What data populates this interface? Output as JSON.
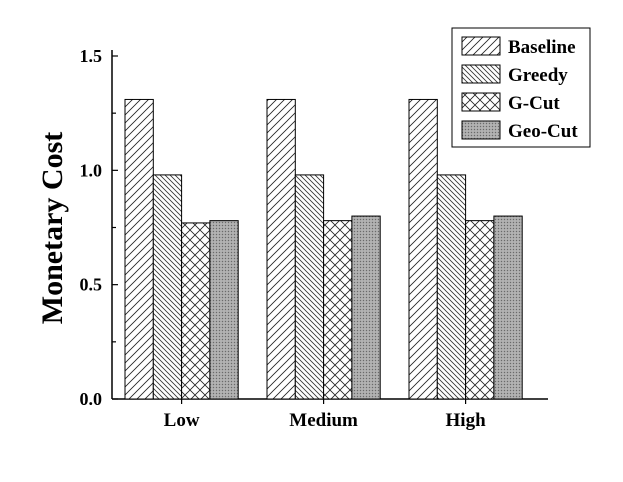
{
  "chart_data": {
    "type": "bar",
    "title": "",
    "xlabel": "",
    "ylabel": "Monetary Cost",
    "ylim": [
      0,
      1.5
    ],
    "yticks": [
      "0.0",
      "0.5",
      "1.0",
      "1.5"
    ],
    "categories": [
      "Low",
      "Medium",
      "High"
    ],
    "series": [
      {
        "name": "Baseline",
        "values": [
          1.31,
          1.31,
          1.31
        ],
        "pattern": "forward-diagonal"
      },
      {
        "name": "Greedy",
        "values": [
          0.98,
          0.98,
          0.98
        ],
        "pattern": "backward-diagonal"
      },
      {
        "name": "G-Cut",
        "values": [
          0.77,
          0.78,
          0.78
        ],
        "pattern": "crosshatch"
      },
      {
        "name": "Geo-Cut",
        "values": [
          0.78,
          0.8,
          0.8
        ],
        "pattern": "dense-dots"
      }
    ],
    "legend_position": "top-right",
    "grid": false
  }
}
